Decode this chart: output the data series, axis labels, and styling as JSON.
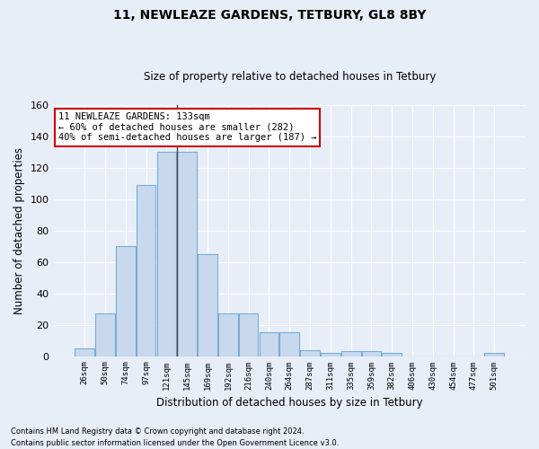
{
  "title1": "11, NEWLEAZE GARDENS, TETBURY, GL8 8BY",
  "title2": "Size of property relative to detached houses in Tetbury",
  "xlabel": "Distribution of detached houses by size in Tetbury",
  "ylabel": "Number of detached properties",
  "bar_labels": [
    "26sqm",
    "50sqm",
    "74sqm",
    "97sqm",
    "121sqm",
    "145sqm",
    "169sqm",
    "192sqm",
    "216sqm",
    "240sqm",
    "264sqm",
    "287sqm",
    "311sqm",
    "335sqm",
    "359sqm",
    "382sqm",
    "406sqm",
    "430sqm",
    "454sqm",
    "477sqm",
    "501sqm"
  ],
  "bar_values": [
    5,
    27,
    70,
    109,
    130,
    130,
    65,
    27,
    27,
    15,
    15,
    4,
    2,
    3,
    3,
    2,
    0,
    0,
    0,
    0,
    2
  ],
  "bar_color": "#c8d9ee",
  "bar_edge_color": "#7aacd4",
  "background_color": "#e8eef8",
  "grid_color": "#ffffff",
  "annotation_text": "11 NEWLEAZE GARDENS: 133sqm\n← 60% of detached houses are smaller (282)\n40% of semi-detached houses are larger (187) →",
  "annotation_box_color": "#ffffff",
  "annotation_box_edge": "#cc0000",
  "property_line_x": 4.5,
  "ylim": [
    0,
    160
  ],
  "yticks": [
    0,
    20,
    40,
    60,
    80,
    100,
    120,
    140,
    160
  ],
  "footnote1": "Contains HM Land Registry data © Crown copyright and database right 2024.",
  "footnote2": "Contains public sector information licensed under the Open Government Licence v3.0."
}
